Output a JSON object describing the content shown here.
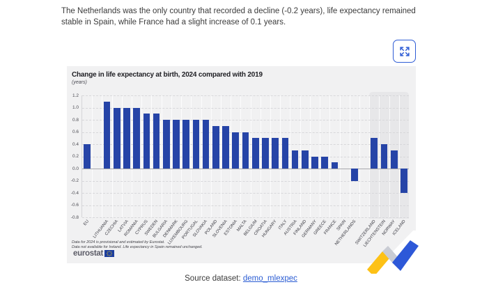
{
  "page": {
    "intro_text": "The Netherlands was the only country that recorded a decline (-0.2 years), life expectancy remained stable in Spain, while France had a slight increase of 0.1 years.",
    "source_label": "Source dataset:",
    "source_link": "demo_mlexpec"
  },
  "footer": {
    "logo_text": "eurostat"
  },
  "chart_data": {
    "type": "bar",
    "title": "Change in life expectancy at birth, 2024 compared with 2019",
    "subtitle": "(years)",
    "ylim": [
      -0.8,
      1.2
    ],
    "ytick_step": 0.2,
    "grid": true,
    "bar_color": "#2644a7",
    "shaded_region_color": "#e7e7e9",
    "shaded_categories": [
      "SWITZERLAND",
      "LIECHTENSTEIN",
      "NORWAY",
      "ICELAND"
    ],
    "categories": [
      "EU",
      "LITHUANIA",
      "CZECHIA",
      "LATVIA",
      "ROMANIA",
      "CYPRUS",
      "SWEDEN",
      "BULGARIA",
      "DENMARK",
      "LUXEMBOURG",
      "PORTUGAL",
      "SLOVAKIA",
      "POLAND",
      "SLOVENIA",
      "ESTONIA",
      "MALTA",
      "BELGIUM",
      "CROATIA",
      "HUNGARY",
      "ITALY",
      "AUSTRIA",
      "FINLAND",
      "GERMANY",
      "GREECE",
      "FRANCE",
      "SPAIN",
      "NETHERLANDS",
      "SWITZERLAND",
      "LIECHTENSTEIN",
      "NORWAY",
      "ICELAND"
    ],
    "values": [
      0.4,
      1.1,
      1.0,
      1.0,
      1.0,
      0.9,
      0.9,
      0.8,
      0.8,
      0.8,
      0.8,
      0.8,
      0.7,
      0.7,
      0.6,
      0.6,
      0.5,
      0.5,
      0.5,
      0.5,
      0.3,
      0.3,
      0.2,
      0.2,
      0.1,
      0.0,
      -0.2,
      0.5,
      0.4,
      0.3,
      -0.4
    ],
    "footnotes": [
      "Data for 2024 is provisional and estimated by Eurostat.",
      "Data not available for Ireland. Life expectancy in Spain remained unchanged."
    ]
  }
}
